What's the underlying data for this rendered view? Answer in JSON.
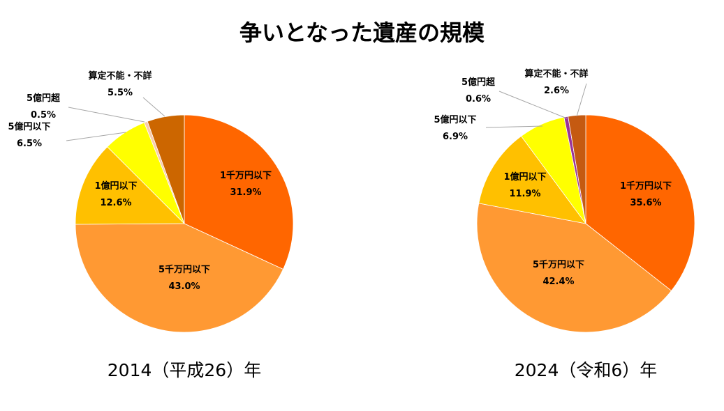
{
  "chart_data": {
    "title": "争いとなった遺産の規模",
    "type": "pie",
    "charts": [
      {
        "caption": "2014（平成26）年",
        "categories": [
          "1千万円以下",
          "5千万円以下",
          "1億円以下",
          "5億円以下",
          "5億円超",
          "算定不能・不詳"
        ],
        "values": [
          31.9,
          43.0,
          12.6,
          6.5,
          0.5,
          5.5
        ],
        "value_labels": [
          "31.9%",
          "43.0%",
          "12.6%",
          "6.5%",
          "0.5%",
          "5.5%"
        ],
        "colors": [
          "#FF6600",
          "#FF9933",
          "#FFC000",
          "#FFFF00",
          "#F8CBAD",
          "#CC6600"
        ]
      },
      {
        "caption": "2024（令和6）年",
        "categories": [
          "1千万円以下",
          "5千万円以下",
          "1億円以下",
          "5億円以下",
          "5億円超",
          "算定不能・不詳"
        ],
        "values": [
          35.6,
          42.4,
          11.9,
          6.9,
          0.6,
          2.6
        ],
        "value_labels": [
          "35.6%",
          "42.4%",
          "11.9%",
          "6.9%",
          "0.6%",
          "2.6%"
        ],
        "colors": [
          "#FF6600",
          "#FF9933",
          "#FFC000",
          "#FFFF00",
          "#993399",
          "#C55A11"
        ]
      }
    ]
  }
}
